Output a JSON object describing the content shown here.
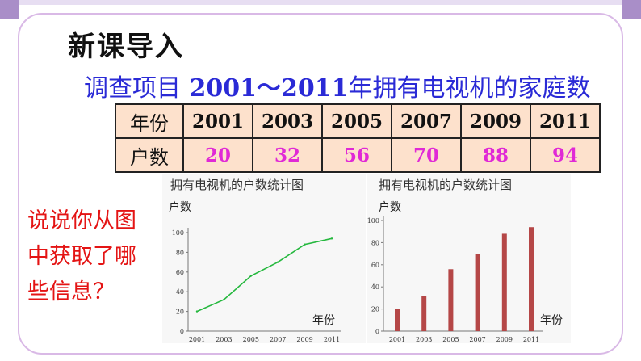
{
  "header": {
    "title": "新课导入"
  },
  "subtitle": {
    "prefix": "调查项目",
    "years": "2001～2011",
    "suffix": "年拥有电视机的家庭数"
  },
  "table": {
    "row1_header": "年份",
    "row2_header": "户数",
    "years": [
      "2001",
      "2003",
      "2005",
      "2007",
      "2009",
      "2011"
    ],
    "counts": [
      "20",
      "32",
      "56",
      "70",
      "88",
      "94"
    ]
  },
  "question": {
    "text": "说说你从图中获取了哪些信息？"
  },
  "colors": {
    "title_blue": "#2a2ad6",
    "count_magenta": "#e029d6",
    "question_red": "#e41414",
    "line_green": "#25b83e",
    "bar_red": "#b54747",
    "table_fill": "#fde1cc",
    "frame": "#d9b9e6"
  },
  "chart_data": [
    {
      "type": "line",
      "title": "拥有电视机的户数统计图",
      "ylabel": "户数",
      "xlabel": "年份",
      "categories": [
        "2001",
        "2003",
        "2005",
        "2007",
        "2009",
        "2011"
      ],
      "values": [
        20,
        32,
        56,
        70,
        88,
        94
      ],
      "yticks": [
        "0",
        "20",
        "40",
        "60",
        "80",
        "100"
      ],
      "ylim": [
        0,
        100
      ],
      "grid": false,
      "series_color": "#25b83e"
    },
    {
      "type": "bar",
      "title": "拥有电视机的户数统计图",
      "ylabel": "户数",
      "xlabel": "年份",
      "categories": [
        "2001",
        "2003",
        "2005",
        "2007",
        "2009",
        "2011"
      ],
      "values": [
        20,
        32,
        56,
        70,
        88,
        94
      ],
      "yticks": [
        "0",
        "20",
        "40",
        "60",
        "80",
        "100"
      ],
      "ylim": [
        0,
        100
      ],
      "grid": false,
      "series_color": "#b54747"
    }
  ]
}
